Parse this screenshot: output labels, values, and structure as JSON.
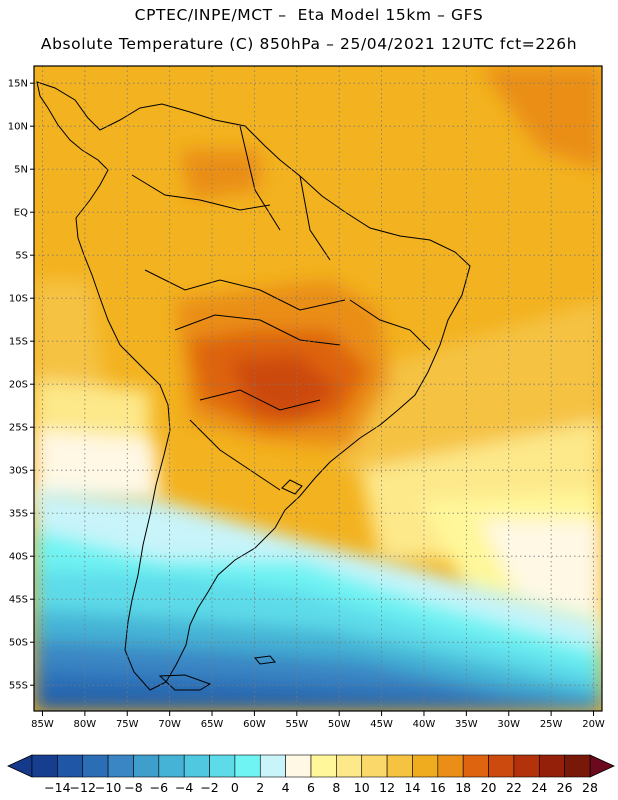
{
  "title_line1": "CPTEC/INPE/MCT –  Eta Model 15km – GFS",
  "title_line2": "Absolute Temperature (C) 850hPa – 25/04/2021 12UTC fct=226h",
  "map": {
    "lon_range": [
      -86,
      -19
    ],
    "lat_range": [
      -58,
      17
    ],
    "lon_ticks": [
      {
        "value": -85,
        "label": "85W"
      },
      {
        "value": -80,
        "label": "80W"
      },
      {
        "value": -75,
        "label": "75W"
      },
      {
        "value": -70,
        "label": "70W"
      },
      {
        "value": -65,
        "label": "65W"
      },
      {
        "value": -60,
        "label": "60W"
      },
      {
        "value": -55,
        "label": "55W"
      },
      {
        "value": -50,
        "label": "50W"
      },
      {
        "value": -45,
        "label": "45W"
      },
      {
        "value": -40,
        "label": "40W"
      },
      {
        "value": -35,
        "label": "35W"
      },
      {
        "value": -30,
        "label": "30W"
      },
      {
        "value": -25,
        "label": "25W"
      },
      {
        "value": -20,
        "label": "20W"
      }
    ],
    "lat_ticks": [
      {
        "value": 15,
        "label": "15N"
      },
      {
        "value": 10,
        "label": "10N"
      },
      {
        "value": 5,
        "label": "5N"
      },
      {
        "value": 0,
        "label": "EQ"
      },
      {
        "value": -5,
        "label": "5S"
      },
      {
        "value": -10,
        "label": "10S"
      },
      {
        "value": -15,
        "label": "15S"
      },
      {
        "value": -20,
        "label": "20S"
      },
      {
        "value": -25,
        "label": "25S"
      },
      {
        "value": -30,
        "label": "30S"
      },
      {
        "value": -35,
        "label": "35S"
      },
      {
        "value": -40,
        "label": "40S"
      },
      {
        "value": -45,
        "label": "45S"
      },
      {
        "value": -50,
        "label": "50S"
      },
      {
        "value": -55,
        "label": "55S"
      }
    ]
  },
  "colorbar": {
    "under_color": "#153a8c",
    "over_color": "#6b0a1e",
    "colors": [
      "#173d8f",
      "#1f56a6",
      "#2c6eb6",
      "#3a86c4",
      "#3e9ecc",
      "#45b3d5",
      "#4fc8e0",
      "#5ddbe9",
      "#6ff3f3",
      "#c8f4fa",
      "#fff8e5",
      "#fff79a",
      "#fde88a",
      "#fbd86a",
      "#f5c242",
      "#f0ac1f",
      "#ea8e17",
      "#de6410",
      "#cc4a0d",
      "#b2320b",
      "#952009",
      "#781808"
    ],
    "labels": [
      "-14",
      "-12",
      "-10",
      "-8",
      "-6",
      "-4",
      "-2",
      "0",
      "2",
      "4",
      "6",
      "8",
      "10",
      "12",
      "14",
      "16",
      "18",
      "20",
      "22",
      "24",
      "26",
      "28"
    ]
  }
}
